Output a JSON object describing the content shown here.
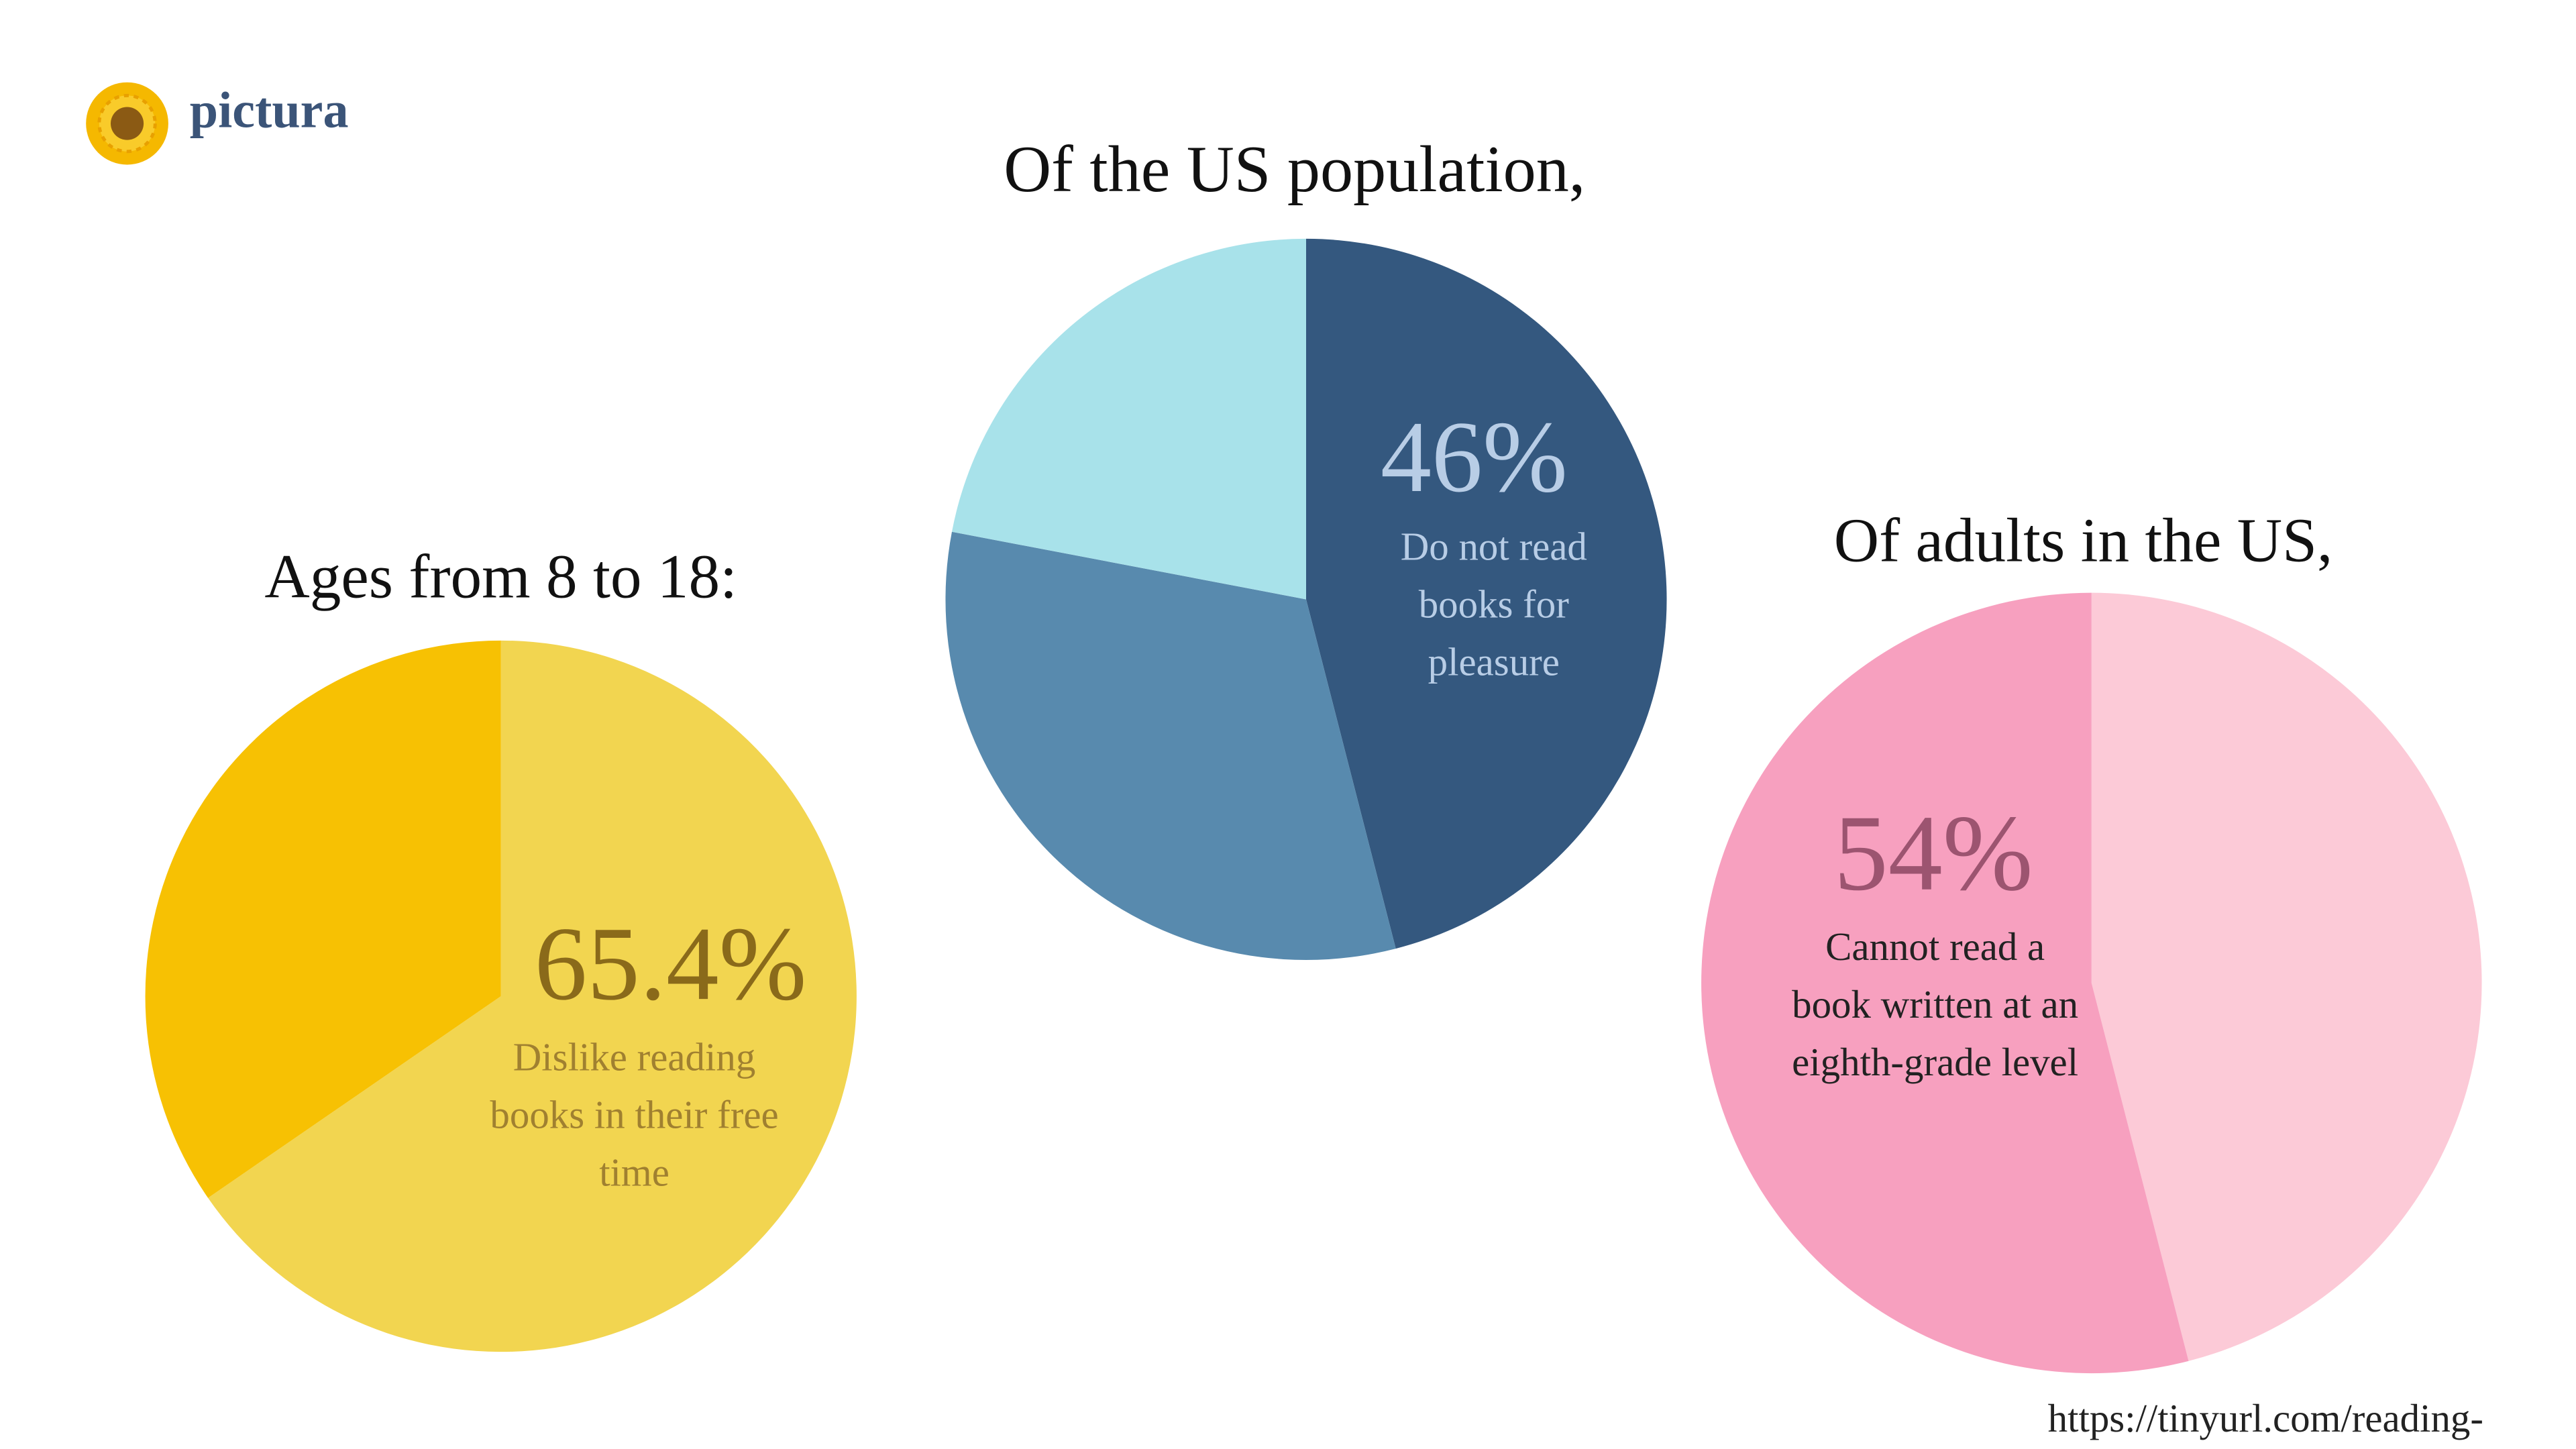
{
  "brand": "pictura",
  "source": "https://tinyurl.com/reading-",
  "chart_data": [
    {
      "type": "pie",
      "title": "Ages from 8 to 18:",
      "values": [
        65.4,
        34.6
      ],
      "value_labels": [
        "65.4%",
        null
      ],
      "colors": [
        "#F2D550",
        "#F7C103"
      ],
      "annotation": "Dislike reading books in their free time"
    },
    {
      "type": "pie",
      "title": "Of the US population,",
      "values": [
        46,
        32,
        22
      ],
      "value_labels": [
        "46%",
        null,
        null
      ],
      "colors": [
        "#34587F",
        "#588AAE",
        "#A8E2EA"
      ],
      "annotation": "Do not read books for pleasure"
    },
    {
      "type": "pie",
      "title": "Of adults in the US,",
      "values": [
        46,
        54
      ],
      "value_labels": [
        null,
        "54%"
      ],
      "colors": [
        "#FCCAD7",
        "#F7A0BF"
      ],
      "annotation": "Cannot read a book written at an eighth-grade level"
    }
  ]
}
